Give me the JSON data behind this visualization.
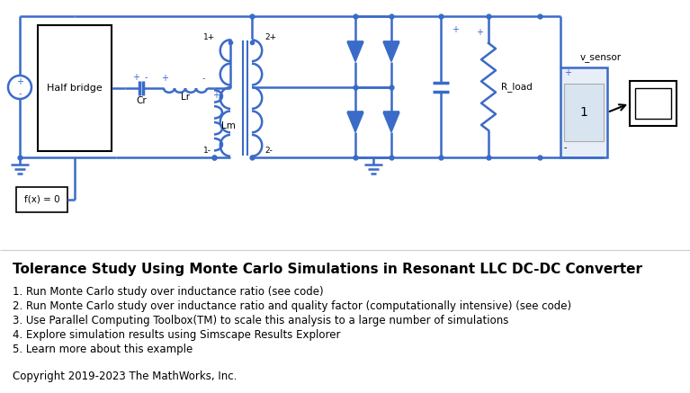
{
  "bg_color": "#ffffff",
  "circuit_color": "#3a6bc8",
  "title": "Tolerance Study Using Monte Carlo Simulations in Resonant LLC DC-DC Converter",
  "items": [
    "1. Run Monte Carlo study over inductance ratio (see code)",
    "2. Run Monte Carlo study over inductance ratio and quality factor (computationally intensive) (see code)",
    "3. Use Parallel Computing Toolbox(TM) to scale this analysis to a large number of simulations",
    "4. Explore simulation results using Simscape Results Explorer",
    "5. Learn more about this example"
  ],
  "copyright": "Copyright 2019-2023 The MathWorks, Inc.",
  "title_fontsize": 11,
  "items_fontsize": 8.5,
  "copyright_fontsize": 8.5,
  "lw": 1.8
}
